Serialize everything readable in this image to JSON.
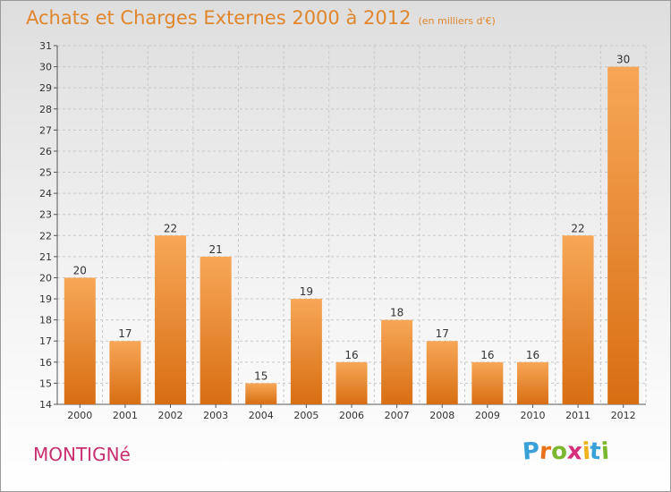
{
  "title": "Achats et Charges Externes 2000 à 2012",
  "subtitle": "(en milliers d'€)",
  "commune": "MONTIGNé",
  "logo": {
    "letters": [
      "P",
      "r",
      "o",
      "x",
      "i",
      "t",
      "i"
    ],
    "colors": [
      "#3aa0d8",
      "#e8731c",
      "#7cb82f",
      "#d62f7a",
      "#f2b21b",
      "#3aa0d8",
      "#7cb82f"
    ]
  },
  "colors": {
    "bar_light": "#f7a757",
    "bar_dark": "#d86e12",
    "title": "#e0862c",
    "commune": "#c72f70"
  },
  "chart_data": {
    "type": "bar",
    "categories": [
      "2000",
      "2001",
      "2002",
      "2003",
      "2004",
      "2005",
      "2006",
      "2007",
      "2008",
      "2009",
      "2010",
      "2011",
      "2012"
    ],
    "values": [
      20,
      17,
      22,
      21,
      15,
      19,
      16,
      18,
      17,
      16,
      16,
      22,
      30
    ],
    "ylim": [
      14,
      31
    ],
    "yticks": [
      14,
      15,
      16,
      17,
      18,
      19,
      20,
      21,
      22,
      23,
      24,
      25,
      26,
      27,
      28,
      29,
      30,
      31
    ],
    "grid": true,
    "data_labels": true
  }
}
